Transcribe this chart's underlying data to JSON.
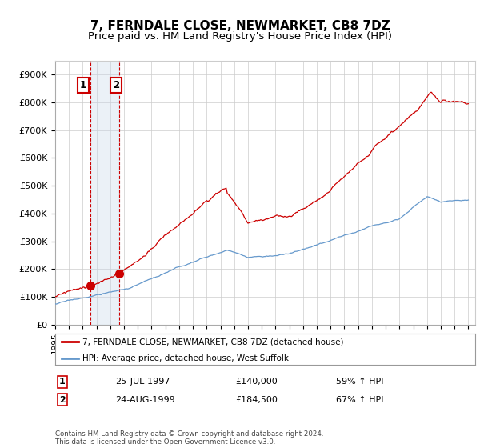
{
  "title": "7, FERNDALE CLOSE, NEWMARKET, CB8 7DZ",
  "subtitle": "Price paid vs. HM Land Registry's House Price Index (HPI)",
  "xlim": [
    1995.0,
    2025.5
  ],
  "ylim": [
    0,
    950000
  ],
  "yticks": [
    0,
    100000,
    200000,
    300000,
    400000,
    500000,
    600000,
    700000,
    800000,
    900000
  ],
  "ytick_labels": [
    "£0",
    "£100K",
    "£200K",
    "£300K",
    "£400K",
    "£500K",
    "£600K",
    "£700K",
    "£800K",
    "£900K"
  ],
  "xticks": [
    1995,
    1996,
    1997,
    1998,
    1999,
    2000,
    2001,
    2002,
    2003,
    2004,
    2005,
    2006,
    2007,
    2008,
    2009,
    2010,
    2011,
    2012,
    2013,
    2014,
    2015,
    2016,
    2017,
    2018,
    2019,
    2020,
    2021,
    2022,
    2023,
    2024,
    2025
  ],
  "purchase1_x": 1997.56,
  "purchase1_y": 140000,
  "purchase2_x": 1999.65,
  "purchase2_y": 184500,
  "legend_line1": "7, FERNDALE CLOSE, NEWMARKET, CB8 7DZ (detached house)",
  "legend_line2": "HPI: Average price, detached house, West Suffolk",
  "note1_num": "1",
  "note1_date": "25-JUL-1997",
  "note1_price": "£140,000",
  "note1_hpi": "59% ↑ HPI",
  "note2_num": "2",
  "note2_date": "24-AUG-1999",
  "note2_price": "£184,500",
  "note2_hpi": "67% ↑ HPI",
  "footer": "Contains HM Land Registry data © Crown copyright and database right 2024.\nThis data is licensed under the Open Government Licence v3.0.",
  "property_line_color": "#cc0000",
  "hpi_line_color": "#6699cc",
  "vline_color": "#cc0000",
  "vfill_color": "#c8d8ea",
  "purchase_dot_color": "#cc0000",
  "box_color": "#cc0000",
  "title_fontsize": 11,
  "subtitle_fontsize": 9.5
}
